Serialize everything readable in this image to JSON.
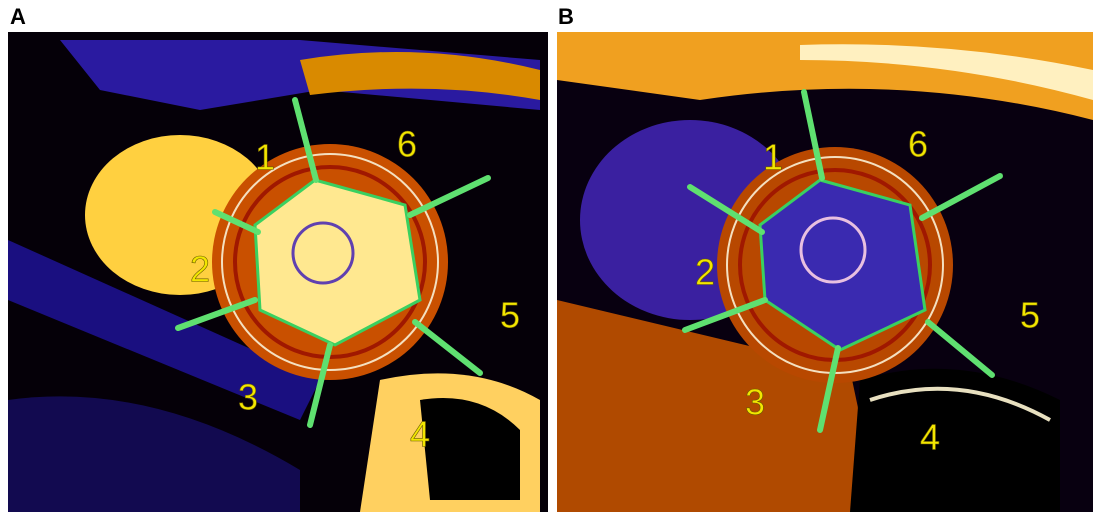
{
  "panels": [
    {
      "label": "A",
      "segments": [
        "1",
        "2",
        "3",
        "4",
        "5",
        "6"
      ]
    },
    {
      "label": "B",
      "segments": [
        "1",
        "2",
        "3",
        "4",
        "5",
        "6"
      ]
    }
  ]
}
